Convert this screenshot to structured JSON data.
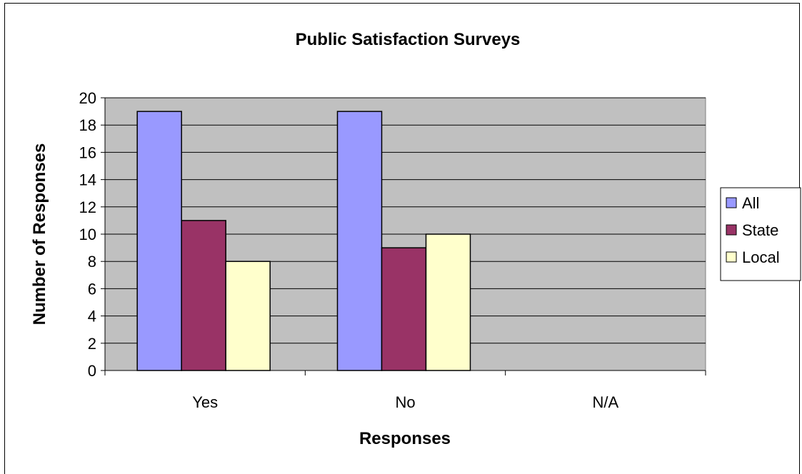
{
  "chart_data": {
    "type": "bar",
    "title": "Public Satisfaction Surveys",
    "xlabel": "Responses",
    "ylabel": "Number of Responses",
    "categories": [
      "Yes",
      "No",
      "N/A"
    ],
    "series": [
      {
        "name": "All",
        "values": [
          19,
          19,
          0
        ],
        "color": "#9999FF"
      },
      {
        "name": "State",
        "values": [
          11,
          9,
          0
        ],
        "color": "#993366"
      },
      {
        "name": "Local",
        "values": [
          8,
          10,
          0
        ],
        "color": "#FFFFCC"
      }
    ],
    "ylim": [
      0,
      20
    ],
    "yticks": [
      "0",
      "2",
      "4",
      "6",
      "8",
      "10",
      "12",
      "14",
      "16",
      "18",
      "20"
    ],
    "grid": true,
    "plot_background": "#C0C0C0",
    "legend_position": "right"
  }
}
